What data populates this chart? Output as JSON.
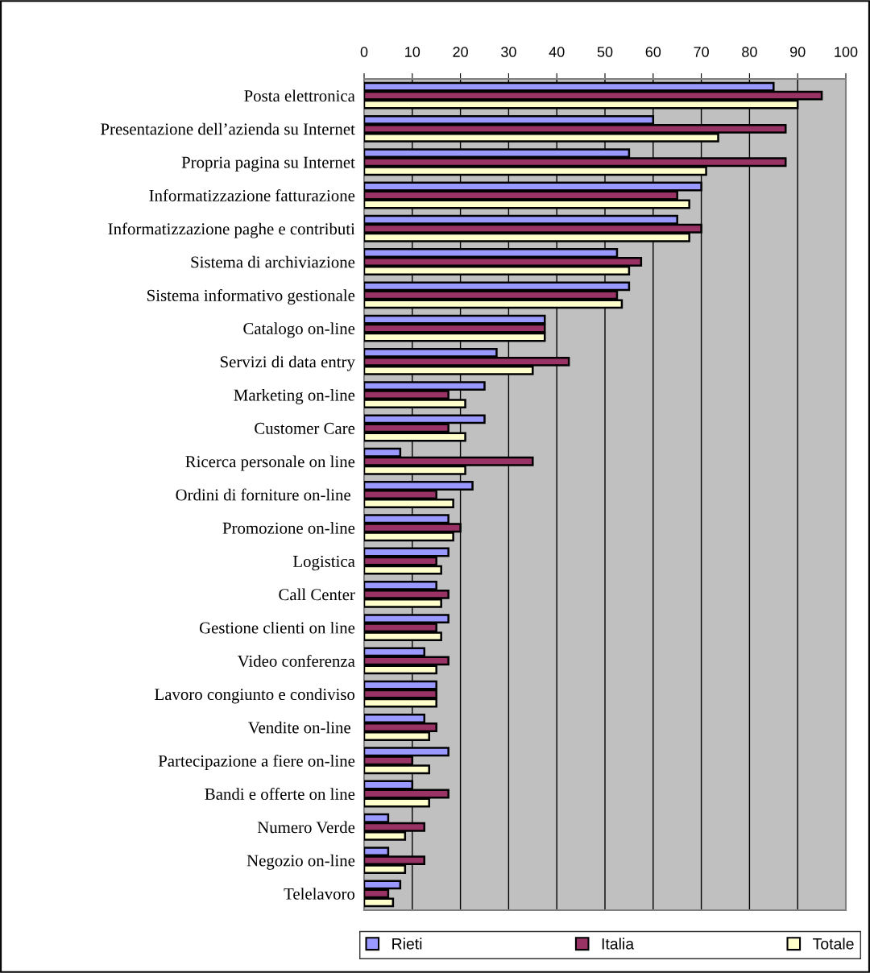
{
  "chart_data": {
    "type": "bar",
    "orientation": "horizontal",
    "categories": [
      "Posta elettronica",
      "Presentazione dell’azienda su Internet",
      "Propria pagina su Internet",
      "Informatizzazione fatturazione",
      "Informatizzazione paghe e contributi",
      "Sistema di archiviazione",
      "Sistema informativo gestionale",
      "Catalogo on-line",
      "Servizi di data entry",
      "Marketing on-line",
      "Customer Care",
      "Ricerca personale on line",
      "Ordini di forniture on-line ",
      "Promozione on-line",
      "Logistica",
      "Call Center",
      "Gestione clienti on line",
      "Video conferenza",
      "Lavoro congiunto e condiviso",
      "Vendite on-line ",
      "Partecipazione a fiere on-line",
      "Bandi e offerte on line",
      "Numero Verde",
      "Negozio on-line",
      "Telelavoro"
    ],
    "series": [
      {
        "name": "Rieti",
        "color": "#9999ff",
        "values": [
          85,
          60,
          55,
          70,
          65,
          52.5,
          55,
          37.5,
          27.5,
          25,
          25,
          7.5,
          22.5,
          17.5,
          17.5,
          15,
          17.5,
          12.5,
          15,
          12.5,
          17.5,
          10,
          5,
          5,
          7.5
        ]
      },
      {
        "name": "Italia",
        "color": "#993366",
        "values": [
          95,
          87.5,
          87.5,
          65,
          70,
          57.5,
          52.5,
          37.5,
          42.5,
          17.5,
          17.5,
          35,
          15,
          20,
          15,
          17.5,
          15,
          17.5,
          15,
          15,
          10,
          17.5,
          12.5,
          12.5,
          5
        ]
      },
      {
        "name": "Totale",
        "color": "#ffffcc",
        "values": [
          90,
          73.5,
          71,
          67.5,
          67.5,
          55,
          53.5,
          37.5,
          35,
          21,
          21,
          21,
          18.5,
          18.5,
          16,
          16,
          16,
          15,
          15,
          13.5,
          13.5,
          13.5,
          8.5,
          8.5,
          6
        ]
      }
    ],
    "xlim": [
      0,
      100
    ],
    "xticks": [
      0,
      10,
      20,
      30,
      40,
      50,
      60,
      70,
      80,
      90,
      100
    ],
    "grid": "x",
    "legend": "bottom"
  }
}
